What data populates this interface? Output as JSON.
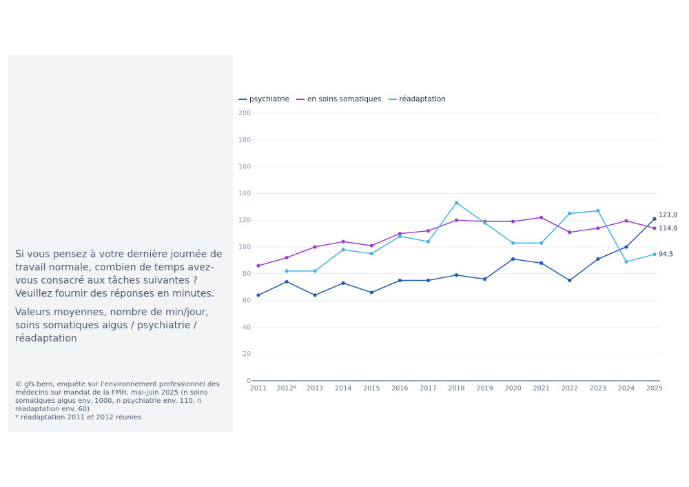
{
  "text": {
    "question": "Si vous pensez à votre dernière journée de travail normale, combien de temps avez-vous consacré aux tâches suivantes ? Veuillez fournir des réponses en minutes.",
    "subtitle": "Valeurs moyennes, nombre de min/jour, soins somatiques aigus / psychiatrie / réadaptation",
    "source_line1": "© gfs.bern, enquête sur l'environnement professionnel des médecins sur mandat de la FMH, mai-juin 2025 (n soins somatiques aigus env. 1000, n psychiatrie env. 110, n réadaptation env. 60)",
    "source_line2": "* réadaptation 2011 et 2012 réunies"
  },
  "chart_data": {
    "type": "line",
    "x": [
      "2011",
      "2012*",
      "2013",
      "2014",
      "2015",
      "2016",
      "2017",
      "2018",
      "2019",
      "2020",
      "2021",
      "2022",
      "2023",
      "2024",
      "2025"
    ],
    "ylim": [
      0,
      200
    ],
    "yticks": [
      0,
      20,
      40,
      60,
      80,
      100,
      120,
      140,
      160,
      180,
      200
    ],
    "grid": true,
    "legend_position": "top-left",
    "series": [
      {
        "name": "psychiatrie",
        "color": "#1f5bb5",
        "values": [
          64,
          74,
          64,
          73,
          66,
          75,
          75,
          79,
          76,
          91,
          88,
          75,
          91,
          100,
          121
        ],
        "end_label": "121,0"
      },
      {
        "name": "en soins somatiques",
        "color": "#9b3fc9",
        "values": [
          86,
          92,
          100,
          104,
          101,
          110,
          112,
          120,
          119,
          119,
          122,
          111,
          114,
          119.5,
          114
        ],
        "end_label": "114,0"
      },
      {
        "name": "réadaptation",
        "color": "#45b3e3",
        "values": [
          null,
          82,
          82,
          98,
          95,
          108,
          104,
          133,
          118,
          103,
          103,
          125,
          127,
          89,
          94.5
        ],
        "end_label": "94,5"
      }
    ]
  }
}
